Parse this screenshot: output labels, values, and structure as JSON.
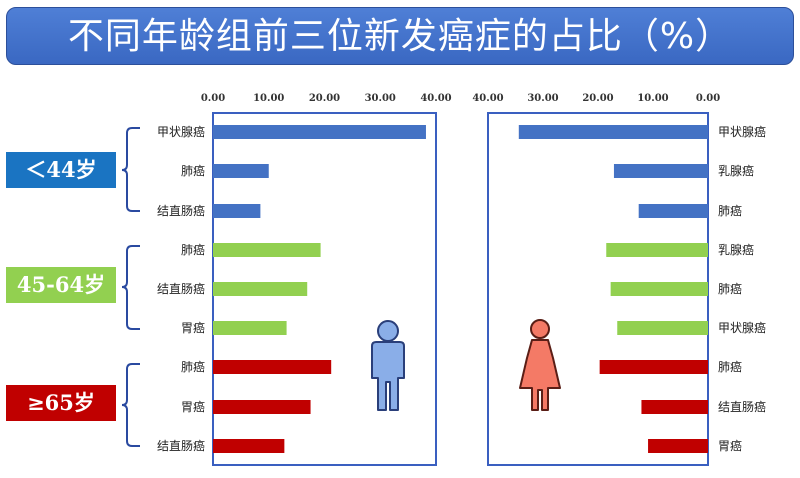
{
  "title": "不同年龄组前三位新发癌症的占比（%）",
  "age_groups": [
    {
      "label": "＜44岁",
      "color": "#1a74c2"
    },
    {
      "label": "45-64岁",
      "color": "#92d050"
    },
    {
      "label": "≥65岁",
      "color": "#c00000"
    }
  ],
  "chart_data": [
    {
      "type": "bar",
      "orientation": "horizontal",
      "panel": "male",
      "icon": "male-figure-icon",
      "icon_color": "#8aaee8",
      "x_range": [
        0,
        40
      ],
      "x_ticks": [
        "0.00",
        "10.00",
        "20.00",
        "30.00",
        "40.00"
      ],
      "categories": [
        "甲状腺癌",
        "肺癌",
        "结直肠癌",
        "肺癌",
        "结直肠癌",
        "胃癌",
        "肺癌",
        "胃癌",
        "结直肠癌"
      ],
      "values": [
        38.2,
        10.0,
        8.5,
        19.3,
        16.9,
        13.2,
        21.2,
        17.5,
        12.8
      ],
      "group": [
        "＜44岁",
        "＜44岁",
        "＜44岁",
        "45-64岁",
        "45-64岁",
        "45-64岁",
        "≥65岁",
        "≥65岁",
        "≥65岁"
      ],
      "colors": [
        "#4472c4",
        "#4472c4",
        "#4472c4",
        "#92d050",
        "#92d050",
        "#92d050",
        "#c00000",
        "#c00000",
        "#c00000"
      ]
    },
    {
      "type": "bar",
      "orientation": "horizontal",
      "panel": "female",
      "icon": "female-figure-icon",
      "icon_color": "#f47a66",
      "x_range": [
        40,
        0
      ],
      "x_ticks": [
        "40.00",
        "30.00",
        "20.00",
        "10.00",
        "0.00"
      ],
      "categories": [
        "甲状腺癌",
        "乳腺癌",
        "肺癌",
        "乳腺癌",
        "肺癌",
        "甲状腺癌",
        "肺癌",
        "结直肠癌",
        "胃癌"
      ],
      "values": [
        34.4,
        17.1,
        12.6,
        18.5,
        17.7,
        16.5,
        19.7,
        12.1,
        10.9
      ],
      "group": [
        "＜44岁",
        "＜44岁",
        "＜44岁",
        "45-64岁",
        "45-64岁",
        "45-64岁",
        "≥65岁",
        "≥65岁",
        "≥65岁"
      ],
      "colors": [
        "#4472c4",
        "#4472c4",
        "#4472c4",
        "#92d050",
        "#92d050",
        "#92d050",
        "#c00000",
        "#c00000",
        "#c00000"
      ]
    }
  ]
}
